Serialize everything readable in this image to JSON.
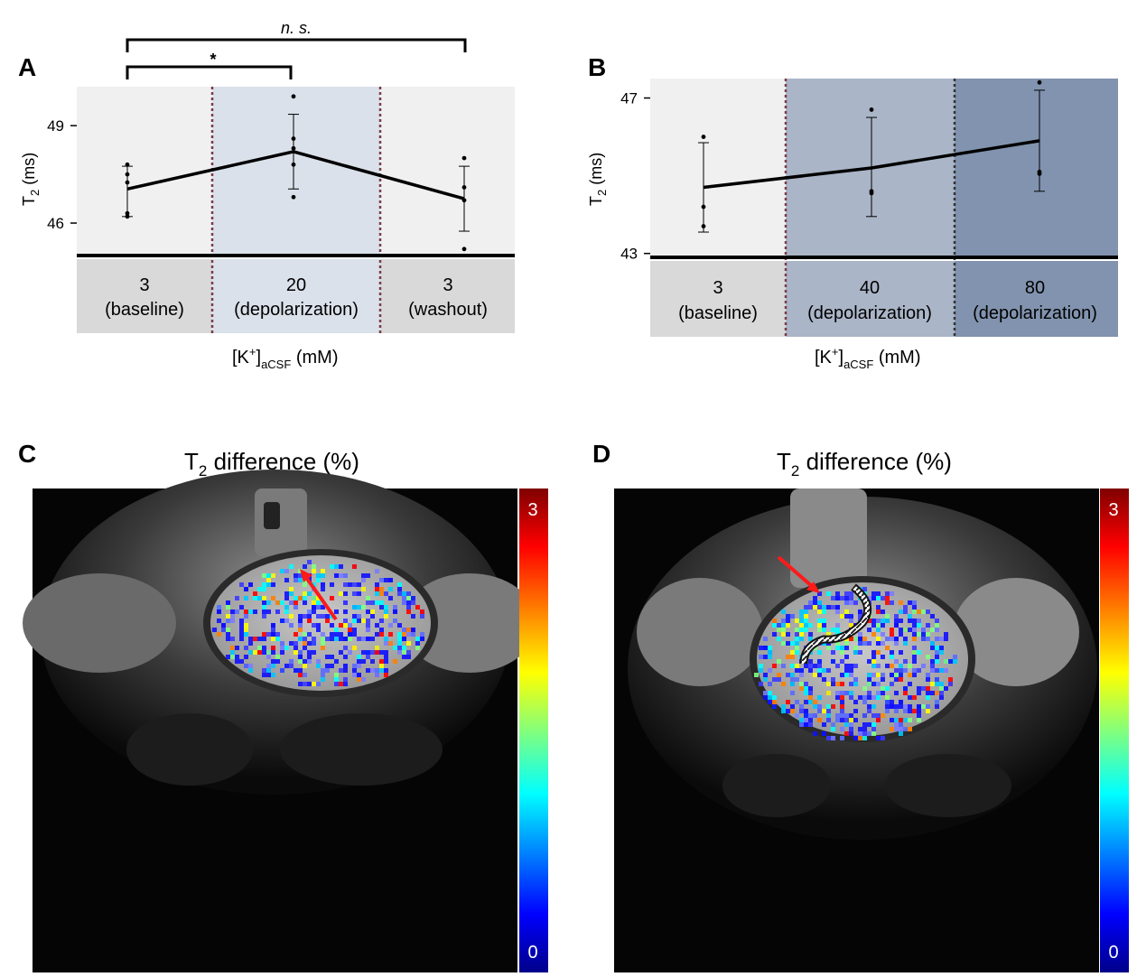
{
  "panels": {
    "a": "A",
    "b": "B",
    "c": "C",
    "d": "D"
  },
  "colors": {
    "panel_bg": "#f0f0f0",
    "depol_a": "#dbe1ea",
    "depol_b40": "#aab5c7",
    "depol_b80": "#8193ae",
    "category_strip": "#d9d9d9",
    "divider": "#7a3c4a",
    "line": "#000000"
  },
  "chart_data": [
    {
      "id": "A",
      "type": "line",
      "ylabel_main": "T",
      "ylabel_sub": "2",
      "ylabel_unit": " (ms)",
      "ylim": [
        45,
        50.2
      ],
      "yticks": [
        46,
        49
      ],
      "ytick_labels": [
        "46",
        "49"
      ],
      "categories": [
        {
          "value": "3",
          "label": "(baseline)"
        },
        {
          "value": "20",
          "label": "(depolarization)"
        },
        {
          "value": "3",
          "label": "(washout)"
        }
      ],
      "means": [
        47.05,
        48.2,
        46.75
      ],
      "errors": [
        [
          46.2,
          47.75
        ],
        [
          47.05,
          49.35
        ],
        [
          45.75,
          47.75
        ]
      ],
      "points": [
        [
          47.8,
          47.5,
          47.25,
          46.3,
          46.2
        ],
        [
          49.9,
          48.6,
          48.3,
          47.8,
          46.8
        ],
        [
          48.0,
          47.1,
          46.7,
          45.2
        ]
      ],
      "significance": [
        {
          "label": "*",
          "from": 0,
          "to": 1
        },
        {
          "label": "n. s.",
          "from": 0,
          "to": 2
        }
      ],
      "xlabel": {
        "main": "[K",
        "sup": "+",
        "close": "]",
        "sub": "aCSF",
        "unit": " (mM)"
      }
    },
    {
      "id": "B",
      "type": "line",
      "ylabel_main": "T",
      "ylabel_sub": "2",
      "ylabel_unit": " (ms)",
      "ylim": [
        42.9,
        47.5
      ],
      "yticks": [
        43,
        47
      ],
      "ytick_labels": [
        "43",
        "47"
      ],
      "categories": [
        {
          "value": "3",
          "label": "(baseline)"
        },
        {
          "value": "40",
          "label": "(depolarization)"
        },
        {
          "value": "80",
          "label": "(depolarization)"
        }
      ],
      "means": [
        44.7,
        45.2,
        45.9
      ],
      "errors": [
        [
          43.55,
          45.85
        ],
        [
          43.95,
          46.5
        ],
        [
          44.6,
          47.2
        ]
      ],
      "points": [
        [
          46.0,
          44.2,
          43.7
        ],
        [
          46.7,
          44.6,
          44.55
        ],
        [
          47.4,
          45.1,
          45.05
        ]
      ],
      "xlabel": {
        "main": "[K",
        "sup": "+",
        "close": "]",
        "sub": "aCSF",
        "unit": " (mM)"
      }
    },
    {
      "id": "C",
      "type": "heatmap",
      "title_main": "T",
      "title_sub": "2",
      "title_rest": " difference (%)",
      "colorbar": {
        "min": "0",
        "max": "3",
        "colors": [
          "#00008b",
          "#0000ff",
          "#00ffff",
          "#ffff00",
          "#ff7f00",
          "#ff0000",
          "#800000"
        ]
      },
      "annotation": "red-arrow"
    },
    {
      "id": "D",
      "type": "heatmap",
      "title_main": "T",
      "title_sub": "2",
      "title_rest": " difference (%)",
      "colorbar": {
        "min": "0",
        "max": "3",
        "colors": [
          "#00008b",
          "#0000ff",
          "#00ffff",
          "#ffff00",
          "#ff7f00",
          "#ff0000",
          "#800000"
        ]
      },
      "annotation": "red-arrow-and-probe"
    }
  ]
}
